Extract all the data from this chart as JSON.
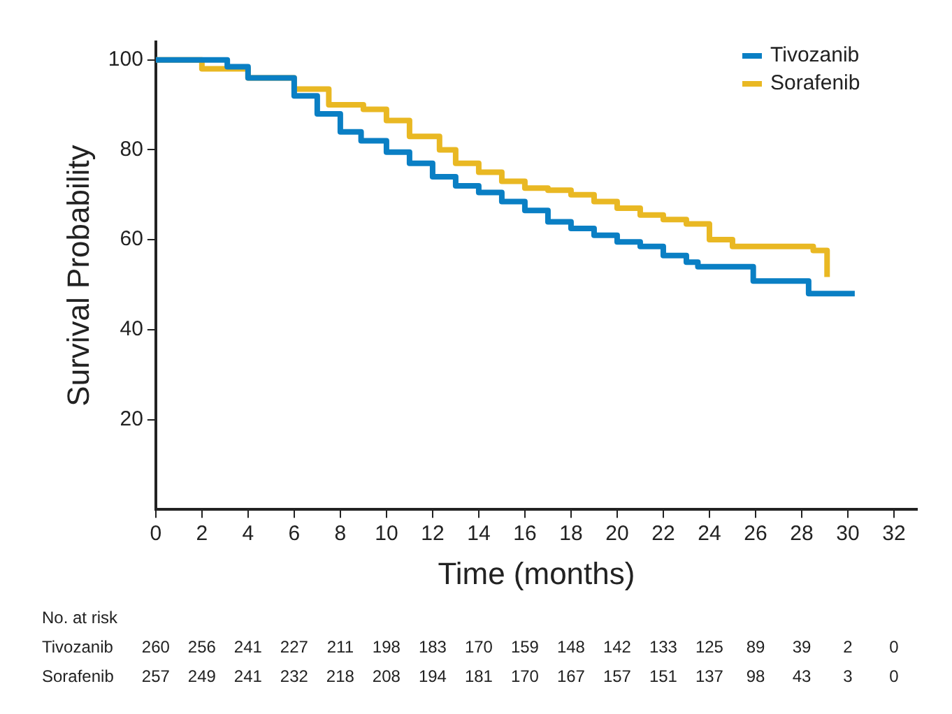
{
  "chart_data": {
    "type": "step",
    "xlabel": "Time (months)",
    "ylabel": "Survival Probability",
    "xlim": [
      0,
      33
    ],
    "xticks": [
      0,
      2,
      4,
      6,
      8,
      10,
      12,
      14,
      16,
      18,
      20,
      22,
      24,
      26,
      28,
      30,
      32
    ],
    "ylim": [
      0,
      104
    ],
    "yticks": [
      20,
      40,
      60,
      80,
      100
    ],
    "grid": false,
    "legend": "top right",
    "marker": "none",
    "line_style": "solid",
    "series": [
      {
        "name": "Tivozanib",
        "color": "#0a7fc4",
        "x": [
          0,
          1.5,
          3.1,
          4,
          6,
          7,
          8,
          8.9,
          10,
          11,
          12,
          13,
          14,
          15,
          16,
          17,
          18,
          19,
          20,
          21,
          22,
          23,
          23.5,
          25.2,
          25.9,
          28.3,
          30.3
        ],
        "values": [
          100,
          100,
          98.5,
          96,
          92,
          88,
          84,
          82,
          79.5,
          77,
          74,
          72,
          70.5,
          68.5,
          66.5,
          64,
          62.5,
          61,
          59.5,
          58.5,
          56.5,
          55,
          54,
          54,
          50.8,
          48,
          48
        ]
      },
      {
        "name": "Sorafenib",
        "color": "#e9b823",
        "x": [
          0,
          2,
          4,
          6,
          7.5,
          9,
          10,
          11,
          12.3,
          13,
          14,
          15,
          16,
          17,
          18,
          19,
          20,
          21,
          22,
          23,
          24,
          25,
          27.5,
          28.5,
          29.1,
          29.1
        ],
        "values": [
          100,
          98,
          96,
          93.5,
          90,
          89,
          86.5,
          83,
          80,
          77,
          75,
          73,
          71.5,
          71,
          70,
          68.5,
          67,
          65.5,
          64.5,
          63.5,
          60,
          58.5,
          58.5,
          57.6,
          57.6,
          51.7
        ]
      }
    ],
    "annotations": [
      "No. at risk",
      "Tivozanib 260 256 241 227 211 198 183 170 159 148 142 133 125 89 39 2 0",
      "Sorafenib 257 249 241 232 218 208 194 181 170 167 157 151 137 98 43 3 0"
    ]
  }
}
